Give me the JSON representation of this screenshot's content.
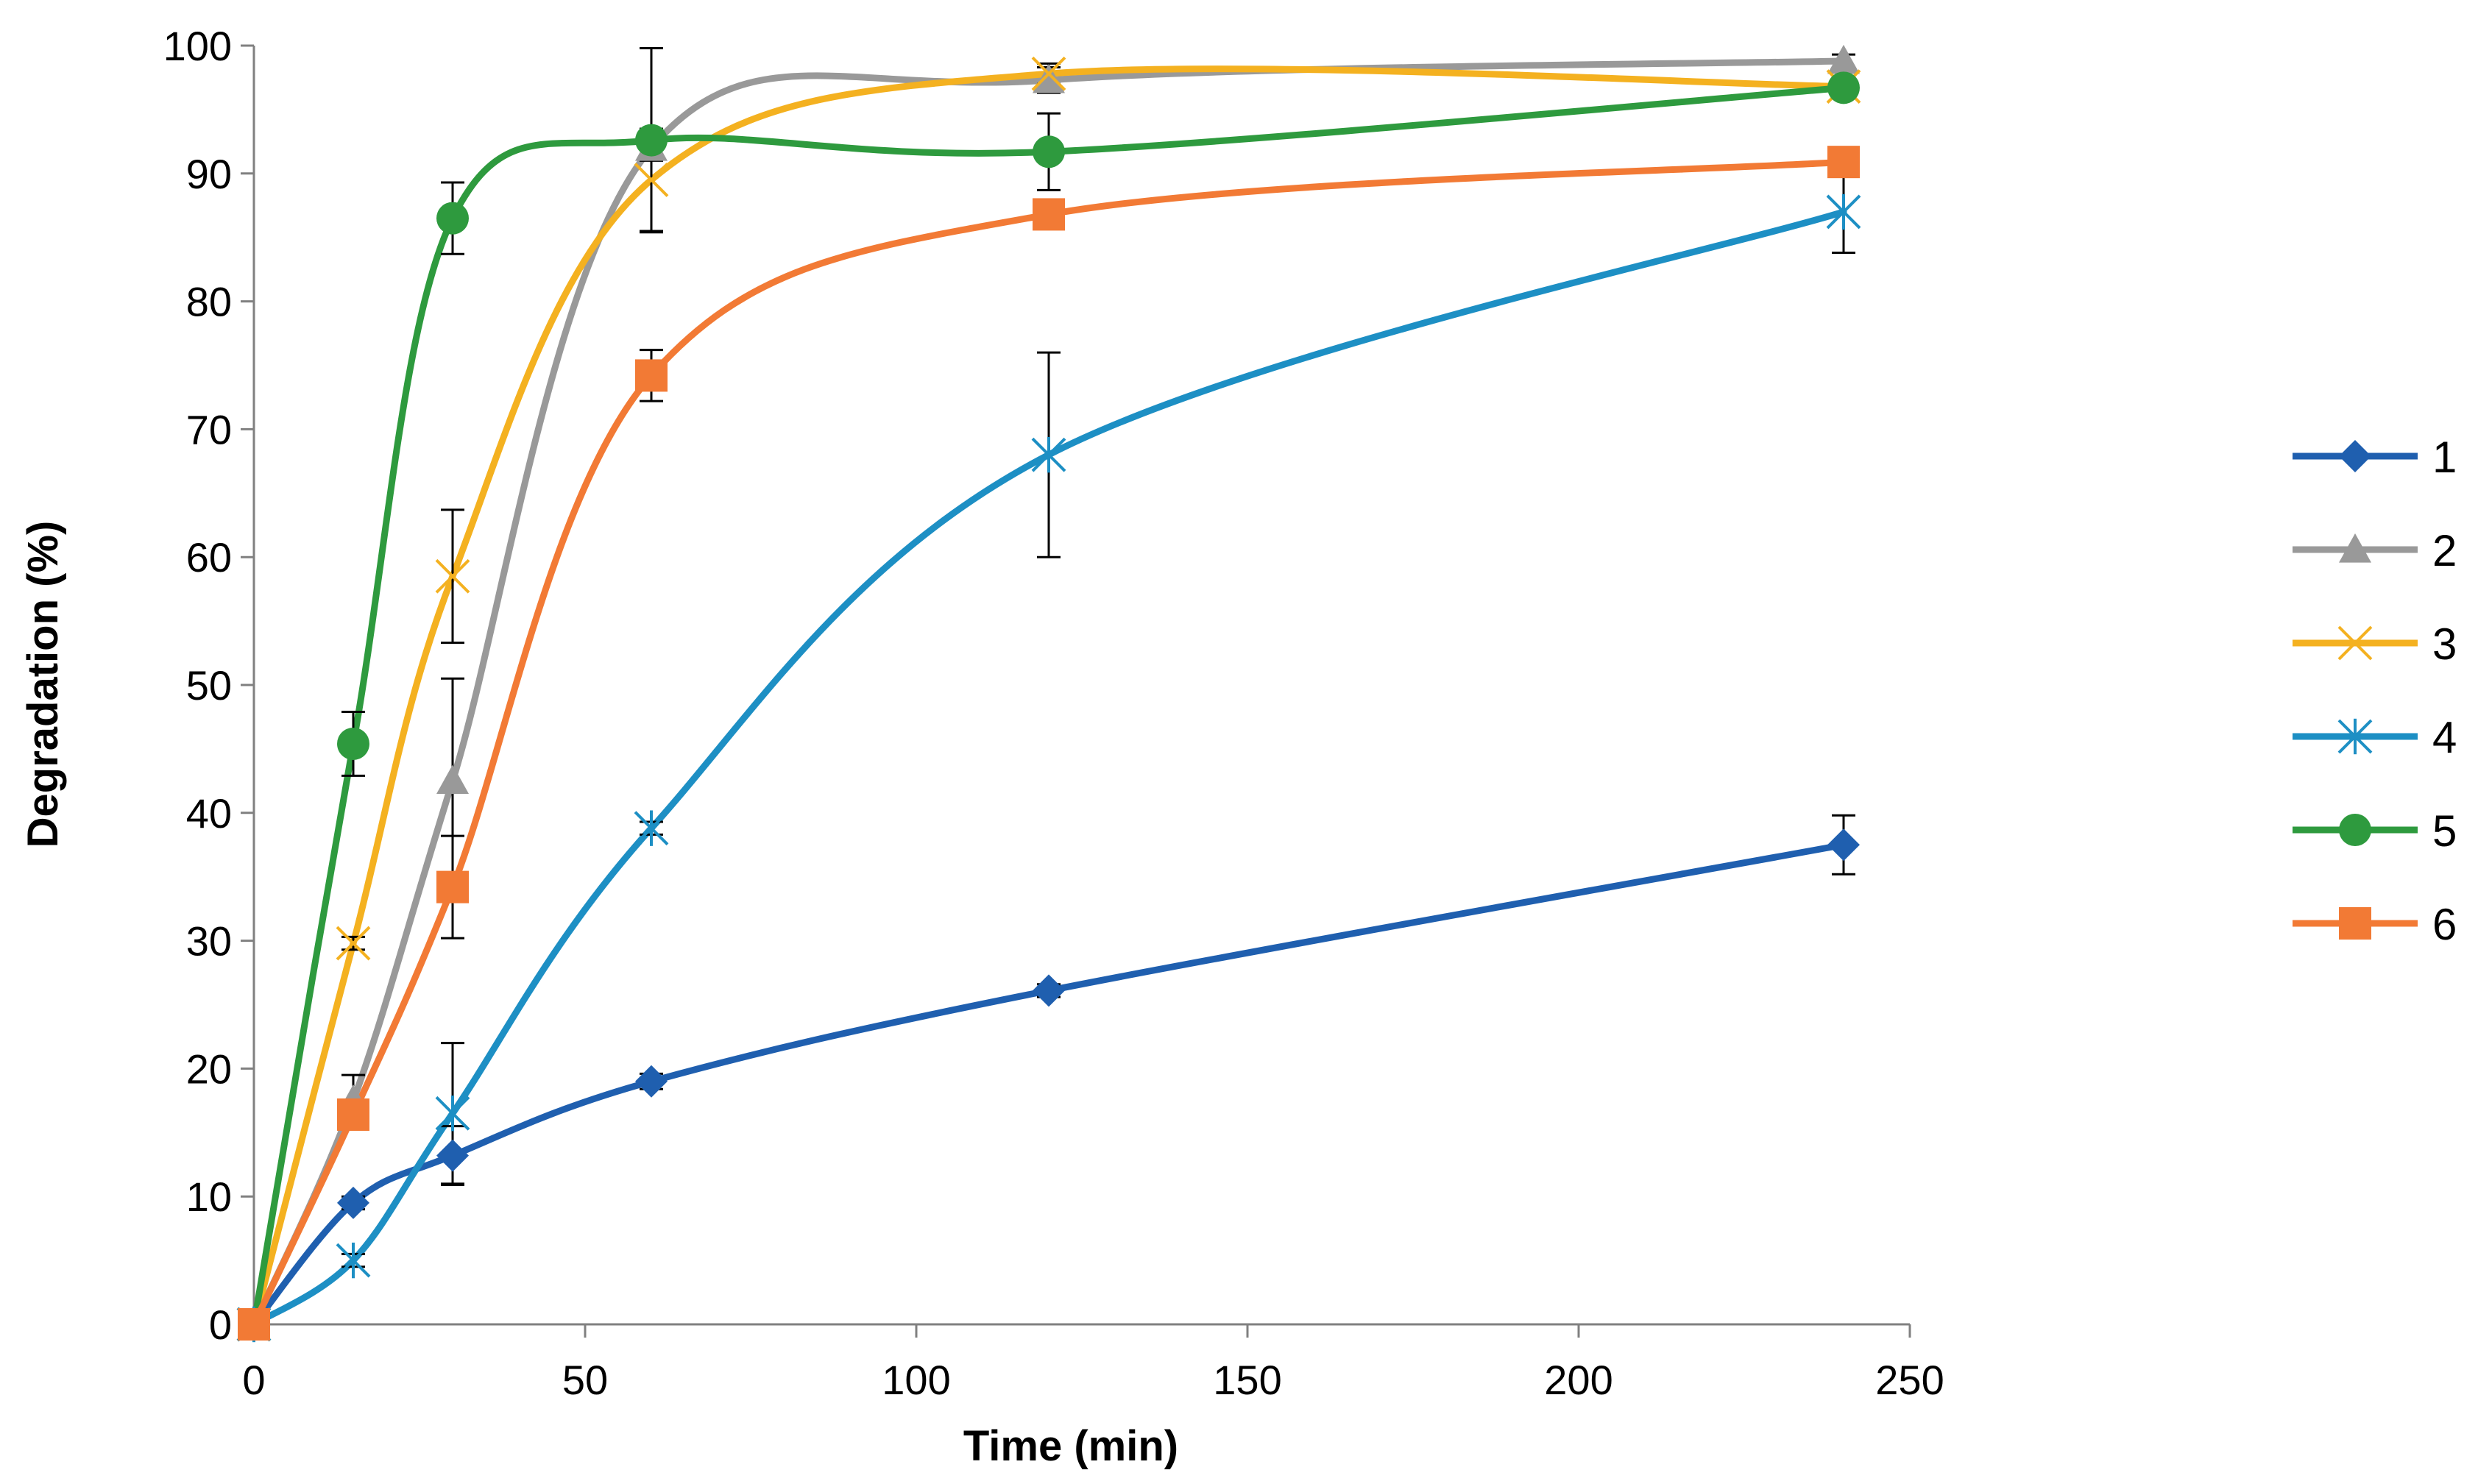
{
  "chart_data": {
    "type": "line",
    "title": "",
    "xlabel": "Time (min)",
    "ylabel": "Degradation (%)",
    "xlim": [
      0,
      250
    ],
    "ylim": [
      0,
      100
    ],
    "x_ticks": [
      0,
      50,
      100,
      150,
      200,
      250
    ],
    "y_ticks": [
      0,
      10,
      20,
      30,
      40,
      50,
      60,
      70,
      80,
      90,
      100
    ],
    "grid": false,
    "smooth": true,
    "legend_position": "right",
    "x": [
      0,
      15,
      30,
      60,
      120,
      240
    ],
    "series": [
      {
        "name": "1",
        "color": "#1F5FAF",
        "marker": "diamond",
        "values": [
          0,
          9.5,
          13.2,
          19.0,
          26.1,
          37.5
        ],
        "errors": [
          0,
          0.5,
          2.3,
          0.6,
          0.5,
          2.3
        ]
      },
      {
        "name": "2",
        "color": "#999999",
        "marker": "triangle",
        "values": [
          0,
          17.5,
          42.5,
          92.0,
          97.3,
          98.8
        ],
        "errors": [
          0,
          2.0,
          8.0,
          1.0,
          1.0,
          0.5
        ]
      },
      {
        "name": "3",
        "color": "#F4B120",
        "marker": "x",
        "values": [
          0,
          29.8,
          58.5,
          89.5,
          97.8,
          96.8
        ],
        "errors": [
          0,
          0.5,
          5.2,
          4.0,
          0.8,
          0.5
        ]
      },
      {
        "name": "4",
        "color": "#1D8FC4",
        "marker": "star",
        "values": [
          0,
          5.0,
          16.5,
          38.8,
          68.0,
          87.0
        ],
        "errors": [
          0,
          0.5,
          5.5,
          0.5,
          8.0,
          3.2
        ]
      },
      {
        "name": "5",
        "color": "#2E9A3E",
        "marker": "circle",
        "values": [
          0,
          45.4,
          86.5,
          92.6,
          91.7,
          96.7
        ],
        "errors": [
          0,
          2.5,
          2.8,
          7.2,
          3.0,
          0.5
        ]
      },
      {
        "name": "6",
        "color": "#F27A35",
        "marker": "square",
        "values": [
          0,
          16.4,
          34.2,
          74.2,
          86.8,
          90.9
        ],
        "errors": [
          0,
          0.5,
          4.0,
          2.0,
          0.5,
          0.5
        ]
      }
    ]
  }
}
